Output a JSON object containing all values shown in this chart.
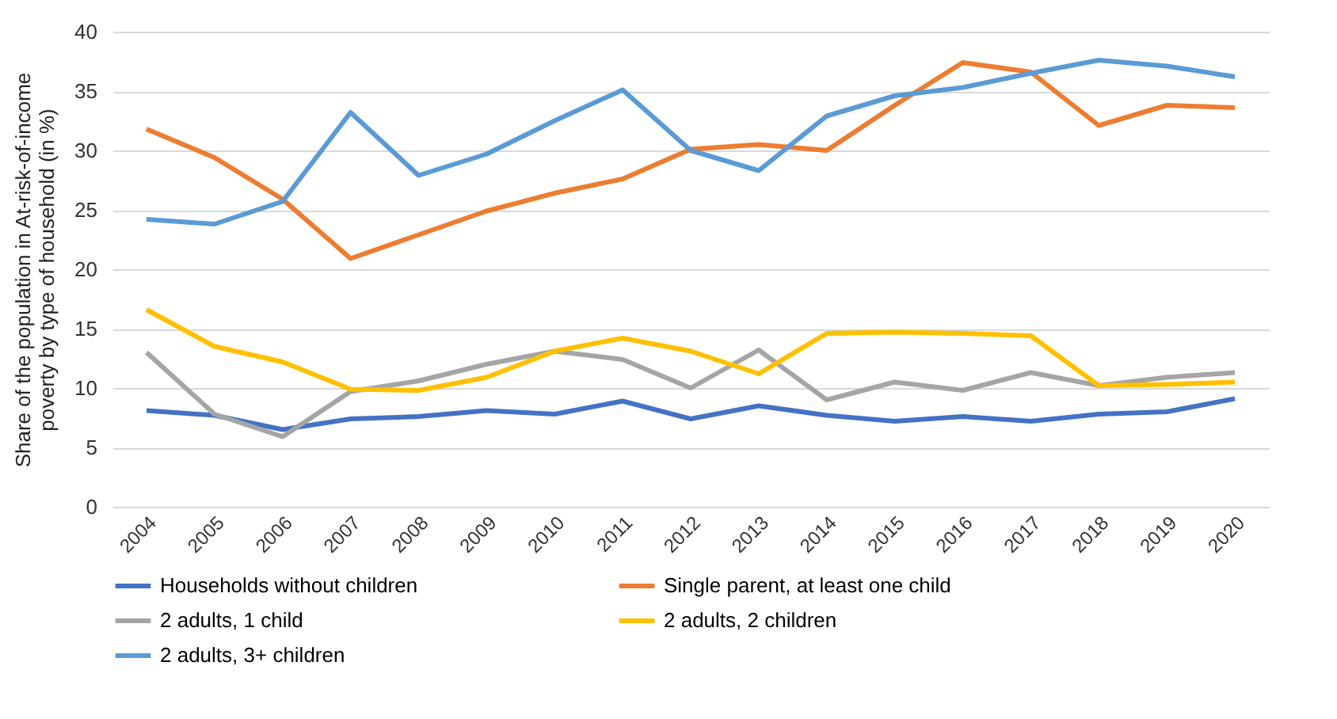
{
  "chart_data": {
    "type": "line",
    "ylabel": "Share of the population in At-risk-of-income poverty by type of household (in %)",
    "categories": [
      "2004",
      "2005",
      "2006",
      "2007",
      "2008",
      "2009",
      "2010",
      "2011",
      "2012",
      "2013",
      "2014",
      "2015",
      "2016",
      "2017",
      "2018",
      "2019",
      "2020"
    ],
    "ylim": [
      0,
      40
    ],
    "yticks": [
      0,
      5,
      10,
      15,
      20,
      25,
      30,
      35,
      40
    ],
    "grid": "y",
    "legend": "bottom",
    "marker": "none",
    "line_style": "solid",
    "series": [
      {
        "name": "Households without children",
        "color": "#4472c4",
        "values": [
          8.1,
          7.7,
          6.5,
          7.4,
          7.6,
          8.1,
          7.8,
          8.9,
          7.4,
          8.5,
          7.7,
          7.2,
          7.6,
          7.2,
          7.8,
          8.0,
          9.1
        ]
      },
      {
        "name": "Single parent, at least one child",
        "color": "#ed7d31",
        "values": [
          31.8,
          29.4,
          25.9,
          20.9,
          22.9,
          24.9,
          26.4,
          27.6,
          30.1,
          30.5,
          30.0,
          33.8,
          37.4,
          36.6,
          32.1,
          33.8,
          33.6
        ]
      },
      {
        "name": "2 adults, 1 child",
        "color": "#a5a5a5",
        "values": [
          13.0,
          7.8,
          5.9,
          9.7,
          10.6,
          12.0,
          13.1,
          12.4,
          10.0,
          13.2,
          9.0,
          10.5,
          9.8,
          11.3,
          10.2,
          10.9,
          11.3
        ]
      },
      {
        "name": "2 adults, 2 children",
        "color": "#ffc000",
        "values": [
          16.6,
          13.5,
          12.2,
          9.9,
          9.8,
          10.9,
          13.1,
          14.2,
          13.1,
          11.2,
          14.6,
          14.7,
          14.6,
          14.4,
          10.2,
          10.3,
          10.5
        ]
      },
      {
        "name": "2 adults, 3+  children",
        "color": "#5b9bd5",
        "values": [
          24.2,
          23.8,
          25.7,
          33.2,
          27.9,
          29.7,
          32.5,
          35.1,
          30.0,
          28.3,
          32.9,
          34.6,
          35.3,
          36.5,
          37.6,
          37.1,
          36.2
        ]
      }
    ]
  }
}
